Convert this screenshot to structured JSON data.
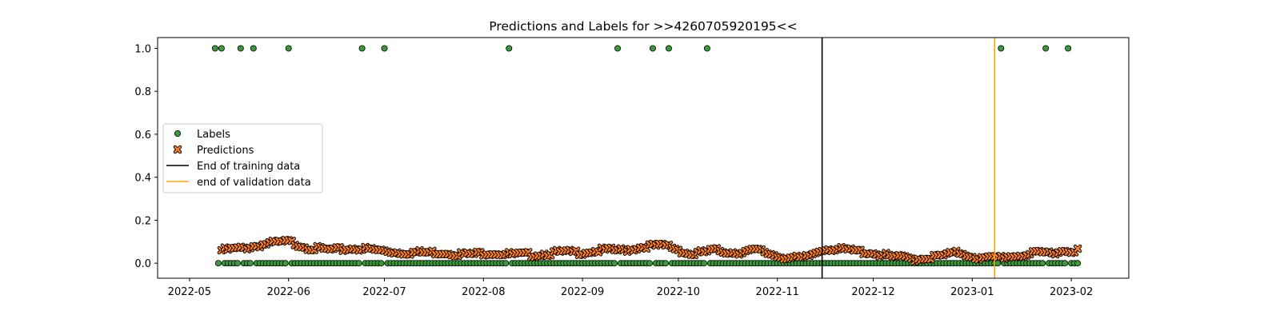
{
  "chart_data": {
    "type": "scatter",
    "title": "Predictions and Labels for >>4260705920195<<",
    "xlabel": "",
    "ylabel": "",
    "x_range": [
      "2022-04-21",
      "2023-02-19"
    ],
    "ylim": [
      -0.07,
      1.05
    ],
    "grid": false,
    "legend_position": "center-left",
    "x_tick_labels": [
      "2022-05",
      "2022-06",
      "2022-07",
      "2022-08",
      "2022-09",
      "2022-10",
      "2022-11",
      "2022-12",
      "2023-01",
      "2023-02"
    ],
    "x_tick_dates": [
      "2022-05-01",
      "2022-06-01",
      "2022-07-01",
      "2022-08-01",
      "2022-09-01",
      "2022-10-01",
      "2022-11-01",
      "2022-12-01",
      "2023-01-01",
      "2023-02-01"
    ],
    "y_ticks": [
      0.0,
      0.2,
      0.4,
      0.6,
      0.8,
      1.0
    ],
    "y_tick_labels": [
      "0.0",
      "0.2",
      "0.4",
      "0.6",
      "0.8",
      "1.0"
    ],
    "date_range": [
      "2022-05-10",
      "2023-02-03"
    ],
    "series": [
      {
        "name": "Labels",
        "marker": "circle",
        "color": "#3a9a3a",
        "edge": "#000000",
        "x": [
          "2022-05-09",
          "2022-05-11",
          "2022-05-17",
          "2022-05-21",
          "2022-06-01",
          "2022-06-24",
          "2022-07-01",
          "2022-08-09",
          "2022-09-12",
          "2022-09-23",
          "2022-09-28",
          "2022-10-10",
          "2023-01-10",
          "2023-01-24",
          "2023-01-31"
        ],
        "y": [
          1,
          1,
          1,
          1,
          1,
          1,
          1,
          1,
          1,
          1,
          1,
          1,
          1,
          1,
          1
        ],
        "baseline_value": 0.0,
        "baseline_note_excluded_dates": [
          "2022-05-09",
          "2022-05-11",
          "2022-05-17",
          "2022-05-21",
          "2022-06-01",
          "2022-06-24",
          "2022-07-01",
          "2022-08-09",
          "2022-09-12",
          "2022-09-23",
          "2022-09-28",
          "2022-10-10",
          "2023-01-10",
          "2023-01-24",
          "2023-01-31"
        ]
      },
      {
        "name": "Predictions",
        "marker": "x",
        "color": "#ff7f2a",
        "edge": "#000000",
        "x": [
          "2022-05-11",
          "2022-05-18",
          "2022-05-25",
          "2022-06-01",
          "2022-06-08",
          "2022-06-15",
          "2022-06-22",
          "2022-06-29",
          "2022-07-06",
          "2022-07-13",
          "2022-07-20",
          "2022-07-27",
          "2022-08-03",
          "2022-08-10",
          "2022-08-17",
          "2022-08-24",
          "2022-08-31",
          "2022-09-07",
          "2022-09-14",
          "2022-09-21",
          "2022-09-28",
          "2022-10-05",
          "2022-10-12",
          "2022-10-19",
          "2022-10-26",
          "2022-11-02",
          "2022-11-09",
          "2022-11-16",
          "2022-11-23",
          "2022-11-30",
          "2022-12-07",
          "2022-12-14",
          "2022-12-21",
          "2022-12-28",
          "2023-01-04",
          "2023-01-11",
          "2023-01-18",
          "2023-01-25",
          "2023-02-01"
        ],
        "y": [
          0.06,
          0.07,
          0.09,
          0.1,
          0.07,
          0.06,
          0.07,
          0.06,
          0.05,
          0.05,
          0.05,
          0.04,
          0.05,
          0.04,
          0.04,
          0.05,
          0.05,
          0.06,
          0.06,
          0.08,
          0.08,
          0.04,
          0.06,
          0.05,
          0.06,
          0.03,
          0.02,
          0.07,
          0.06,
          0.05,
          0.03,
          0.02,
          0.03,
          0.05,
          0.02,
          0.03,
          0.04,
          0.05,
          0.06
        ]
      }
    ],
    "vlines": [
      {
        "name": "End of training data",
        "x": "2022-11-15",
        "color": "#000000"
      },
      {
        "name": "end of validation data",
        "x": "2023-01-08",
        "color": "#ffa500"
      }
    ],
    "legend": [
      "Labels",
      "Predictions",
      "End of training data",
      "end of validation data"
    ]
  }
}
